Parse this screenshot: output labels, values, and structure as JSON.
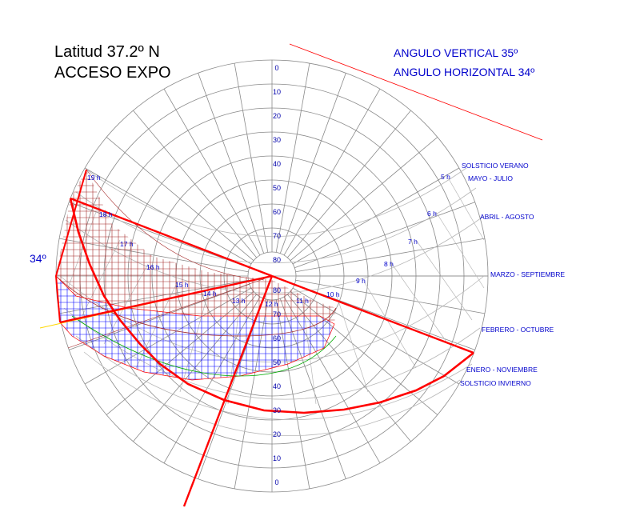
{
  "title": {
    "line1": "Latitud 37.2º N",
    "line2": "ACCESO EXPO"
  },
  "angles": {
    "vertical": "ANGULO VERTICAL 35º",
    "horizontal": "ANGULO HORIZONTAL 34º"
  },
  "side_angle": "34º",
  "altitude_labels_upper": [
    "0",
    "10",
    "20",
    "30",
    "40",
    "50",
    "60",
    "70",
    "80"
  ],
  "altitude_labels_lower": [
    "80",
    "70",
    "60",
    "50",
    "40",
    "30",
    "20",
    "10",
    "0"
  ],
  "hour_labels": [
    "19 h",
    "18 h",
    "17 h",
    "16 h",
    "15 h",
    "14 h",
    "13 h",
    "12 h",
    "11 h",
    "10 h",
    "9 h",
    "8 h",
    "7 h",
    "6 h",
    "5 h"
  ],
  "month_labels": [
    "SOLSTICIO VERANO",
    "MAYO - JULIO",
    "ABRIL - AGOSTO",
    "MARZO - SEPTIEMBRE",
    "FEBRERO - OCTUBRE",
    "ENERO - NOVIEMBRE",
    "SOLSTICIO INVIERNO"
  ],
  "colors": {
    "grid": "#8a8a8a",
    "mask": "#ff0000",
    "labels": "#0000cc",
    "vertical_hatch": "#0000ff",
    "horizontal_hatch": "#a52a2a",
    "winter_arc": "#00aa00",
    "reference": "#ffd700"
  }
}
